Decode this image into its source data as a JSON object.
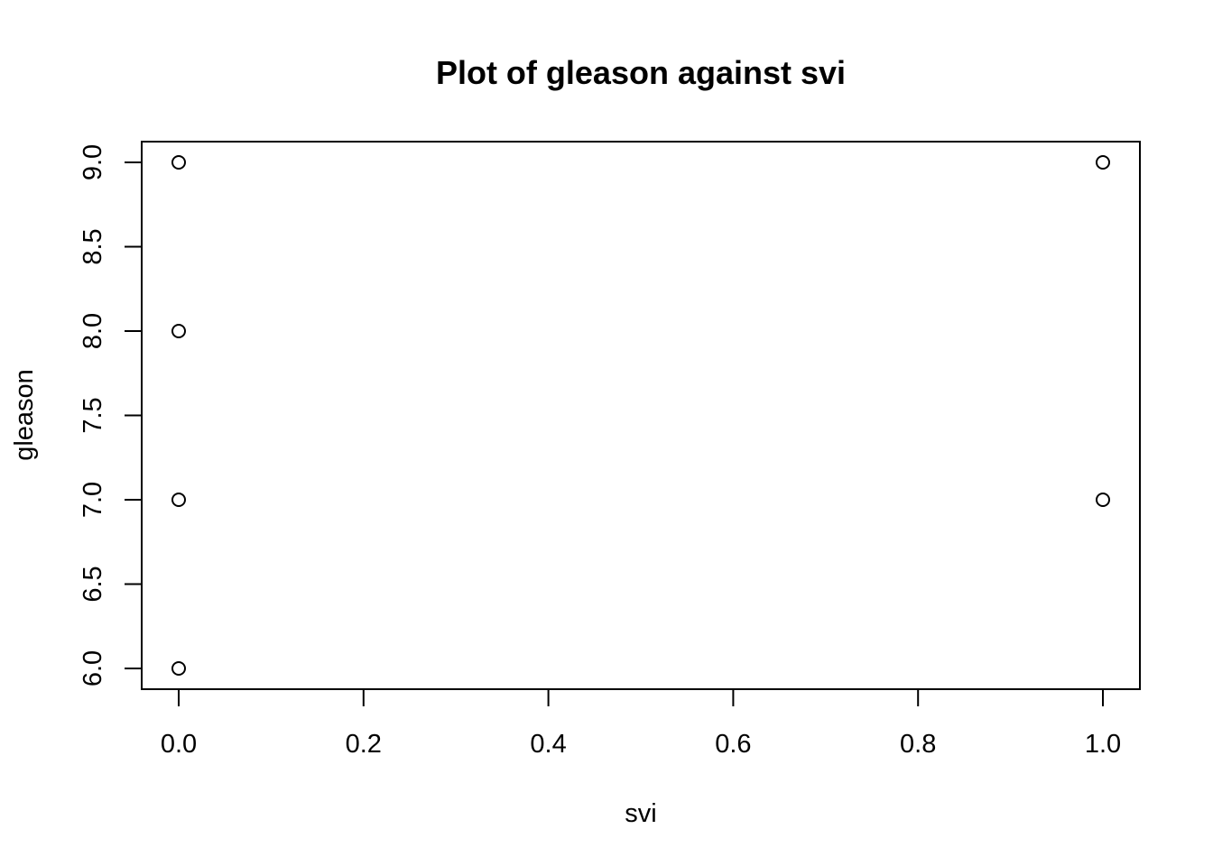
{
  "chart_data": {
    "type": "scatter",
    "title": "Plot of  gleason  against svi",
    "xlabel": "svi",
    "ylabel": "gleason",
    "xlim": [
      0.0,
      1.0
    ],
    "ylim": [
      6.0,
      9.0
    ],
    "x_ticks": [
      0.0,
      0.2,
      0.4,
      0.6,
      0.8,
      1.0
    ],
    "x_tick_labels": [
      "0.0",
      "0.2",
      "0.4",
      "0.6",
      "0.8",
      "1.0"
    ],
    "y_ticks": [
      6.0,
      6.5,
      7.0,
      7.5,
      8.0,
      8.5,
      9.0
    ],
    "y_tick_labels": [
      "6.0",
      "6.5",
      "7.0",
      "7.5",
      "8.0",
      "8.5",
      "9.0"
    ],
    "grid": false,
    "legend": "none",
    "marker": "open-circle",
    "points": [
      {
        "x": 0,
        "y": 9
      },
      {
        "x": 0,
        "y": 8
      },
      {
        "x": 0,
        "y": 7
      },
      {
        "x": 0,
        "y": 6
      },
      {
        "x": 1,
        "y": 9
      },
      {
        "x": 1,
        "y": 7
      }
    ]
  }
}
